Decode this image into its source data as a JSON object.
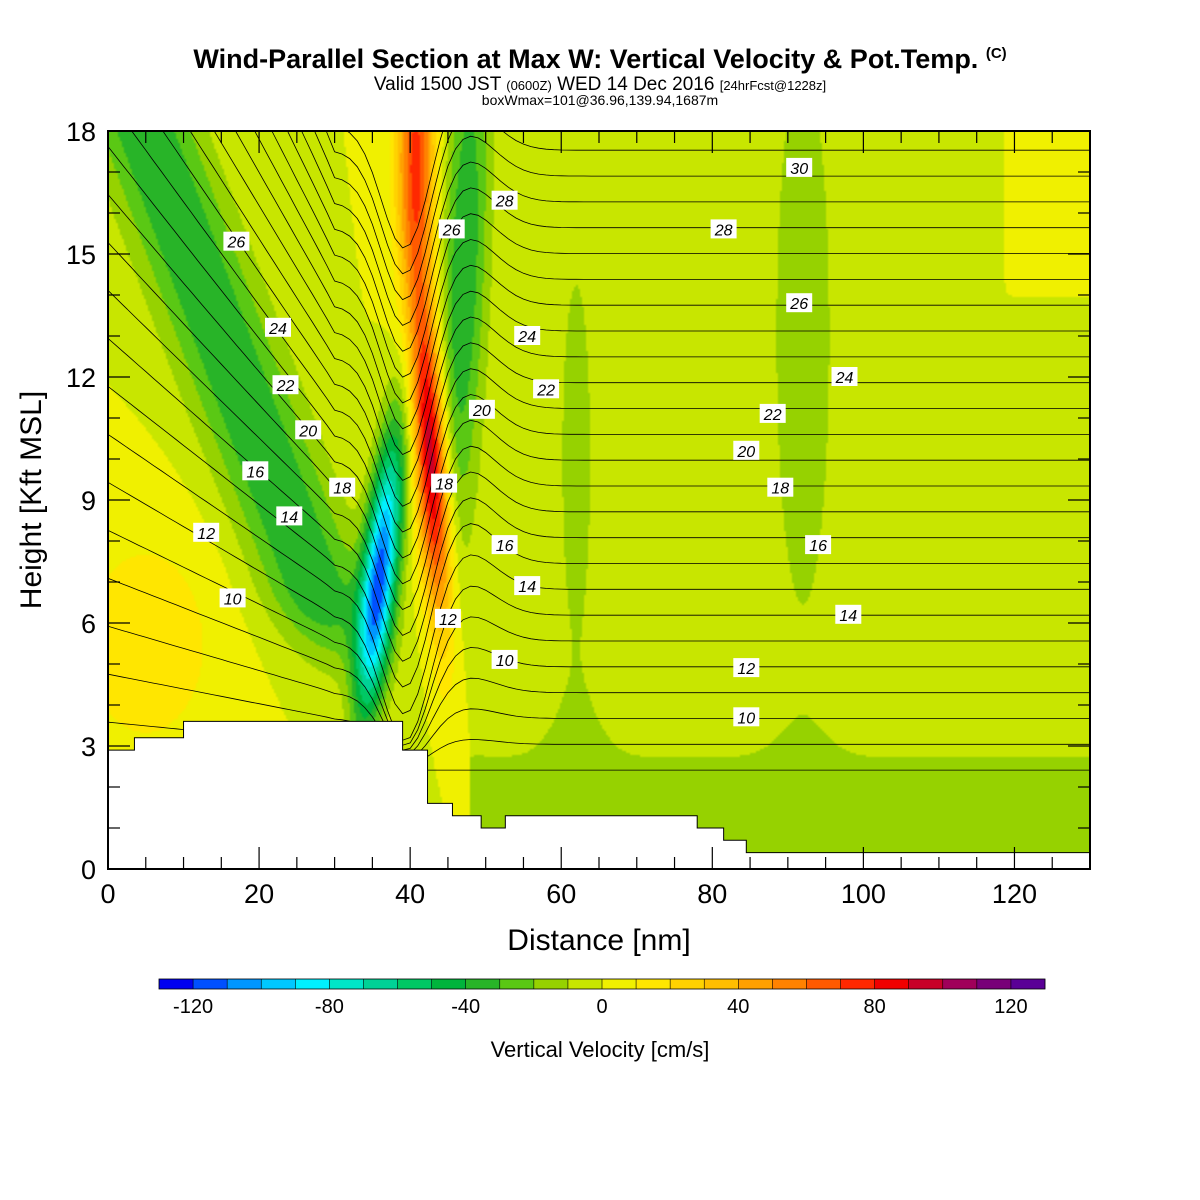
{
  "header": {
    "title": "Wind-Parallel Section at Max W: Vertical Velocity & Pot.Temp.",
    "copyright": "(C)",
    "valid_prefix": "Valid 1500 JST",
    "valid_utc": "(0600Z)",
    "valid_date": "WED 14 Dec 2016",
    "forecast": "[24hrFcst@1228z]",
    "boxwmax": "boxWmax=101@36.96,139.94,1687m"
  },
  "colors": {
    "background_field": "#f5f500",
    "terrain": "#ffffff",
    "contour": "#000000",
    "scale": [
      "#0000f0",
      "#0050ff",
      "#0096ff",
      "#00c8ff",
      "#00f0ff",
      "#00e6c8",
      "#00d296",
      "#00c864",
      "#00b43c",
      "#28b428",
      "#5ac814",
      "#96d200",
      "#c8e600",
      "#f0f000",
      "#ffe600",
      "#ffd200",
      "#ffbe00",
      "#ffa000",
      "#ff8200",
      "#ff5a00",
      "#ff2800",
      "#f00000",
      "#c80028",
      "#a0005a",
      "#780078",
      "#5a0096"
    ]
  },
  "chart_data": {
    "type": "heatmap",
    "xlabel": "Distance [nm]",
    "ylabel": "Height [Kft MSL]",
    "xlim": [
      0,
      130
    ],
    "ylim": [
      0,
      18
    ],
    "x_ticks": [
      "0",
      "20",
      "40",
      "60",
      "80",
      "100",
      "120"
    ],
    "y_ticks": [
      "0",
      "3",
      "6",
      "9",
      "12",
      "15",
      "18"
    ],
    "colorbar": {
      "title": "Vertical Velocity [cm/s]",
      "range": [
        -130,
        130
      ],
      "step": 10,
      "labels": [
        "-120",
        "-80",
        "-40",
        "0",
        "40",
        "80",
        "120"
      ]
    },
    "contour_labels": [
      {
        "text": "30",
        "x": 91.5,
        "y": 17.1
      },
      {
        "text": "28",
        "x": 52.5,
        "y": 16.3
      },
      {
        "text": "28",
        "x": 81.5,
        "y": 15.6
      },
      {
        "text": "26",
        "x": 45.5,
        "y": 15.6
      },
      {
        "text": "26",
        "x": 17,
        "y": 15.3
      },
      {
        "text": "26",
        "x": 91.5,
        "y": 13.8
      },
      {
        "text": "24",
        "x": 22.5,
        "y": 13.2
      },
      {
        "text": "24",
        "x": 55.5,
        "y": 13.0
      },
      {
        "text": "24",
        "x": 97.5,
        "y": 12.0
      },
      {
        "text": "22",
        "x": 23.5,
        "y": 11.8
      },
      {
        "text": "22",
        "x": 58,
        "y": 11.7
      },
      {
        "text": "22",
        "x": 88,
        "y": 11.1
      },
      {
        "text": "20",
        "x": 49.5,
        "y": 11.2
      },
      {
        "text": "20",
        "x": 26.5,
        "y": 10.7
      },
      {
        "text": "20",
        "x": 84.5,
        "y": 10.2
      },
      {
        "text": "18",
        "x": 31,
        "y": 9.3
      },
      {
        "text": "18",
        "x": 44.5,
        "y": 9.4
      },
      {
        "text": "18",
        "x": 89,
        "y": 9.3
      },
      {
        "text": "16",
        "x": 19.5,
        "y": 9.7
      },
      {
        "text": "16",
        "x": 52.5,
        "y": 7.9
      },
      {
        "text": "16",
        "x": 94,
        "y": 7.9
      },
      {
        "text": "14",
        "x": 24,
        "y": 8.6
      },
      {
        "text": "14",
        "x": 55.5,
        "y": 6.9
      },
      {
        "text": "14",
        "x": 98,
        "y": 6.2
      },
      {
        "text": "12",
        "x": 13,
        "y": 8.2
      },
      {
        "text": "12",
        "x": 45,
        "y": 6.1
      },
      {
        "text": "12",
        "x": 84.5,
        "y": 4.9
      },
      {
        "text": "10",
        "x": 16.5,
        "y": 6.6
      },
      {
        "text": "10",
        "x": 52.5,
        "y": 5.1
      },
      {
        "text": "10",
        "x": 84.5,
        "y": 3.7
      }
    ],
    "terrain_height_kft": [
      {
        "x": 0,
        "h": 2.9
      },
      {
        "x": 3.5,
        "h": 3.2
      },
      {
        "x": 10,
        "h": 3.6
      },
      {
        "x": 39,
        "h": 2.9
      },
      {
        "x": 42.3,
        "h": 1.6
      },
      {
        "x": 45.6,
        "h": 1.3
      },
      {
        "x": 49.4,
        "h": 1.0
      },
      {
        "x": 52.6,
        "h": 1.3
      },
      {
        "x": 78,
        "h": 1.0
      },
      {
        "x": 81.5,
        "h": 0.7
      },
      {
        "x": 84.5,
        "h": 0.4
      },
      {
        "x": 130,
        "h": 0.4
      }
    ],
    "velocity_features": [
      {
        "x": 36,
        "y": 7.2,
        "w": -110
      },
      {
        "x": 42.8,
        "y": 10,
        "w": 101
      },
      {
        "x": 40.8,
        "y": 17.5,
        "w": 70
      },
      {
        "x": 15,
        "y": 14,
        "w": -40
      },
      {
        "x": 47,
        "y": 14.5,
        "w": -40
      },
      {
        "x": 92,
        "y": 13,
        "w": -18
      },
      {
        "x": 62,
        "y": 10,
        "w": -12
      },
      {
        "x": 5,
        "y": 5.5,
        "w": 18
      }
    ]
  }
}
